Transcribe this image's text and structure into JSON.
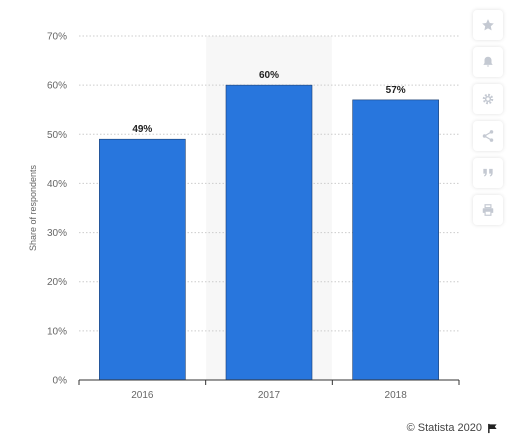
{
  "chart_data": {
    "type": "bar",
    "categories": [
      "2016",
      "2017",
      "2018"
    ],
    "values": [
      49,
      60,
      57
    ],
    "value_labels": [
      "49%",
      "60%",
      "57%"
    ],
    "ylabel": "Share of respondents",
    "ylim": [
      0,
      70
    ],
    "yticks": [
      0,
      10,
      20,
      30,
      40,
      50,
      60,
      70
    ],
    "ytick_labels": [
      "0%",
      "10%",
      "20%",
      "30%",
      "40%",
      "50%",
      "60%",
      "70%"
    ],
    "highlighted_category": "2017",
    "grid": true,
    "colors": {
      "bar": "#2876dd",
      "bar_edge": "#1a3d6e",
      "highlight_band": "#f7f7f7",
      "grid": "#cccccc",
      "axis": "#333333",
      "tick_text": "#666666",
      "label_text": "#222222"
    }
  },
  "toolbar": {
    "buttons": [
      {
        "name": "star-icon"
      },
      {
        "name": "bell-icon"
      },
      {
        "name": "gear-icon"
      },
      {
        "name": "share-icon"
      },
      {
        "name": "quote-icon"
      },
      {
        "name": "print-icon"
      }
    ]
  },
  "footer": {
    "copyright": "© Statista 2020",
    "flag_icon": "flag-icon"
  }
}
